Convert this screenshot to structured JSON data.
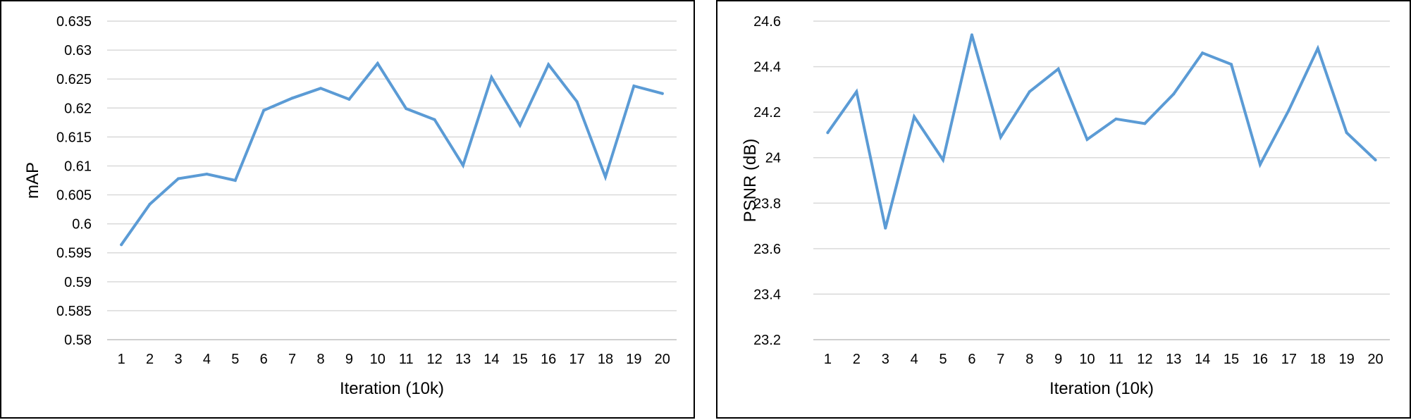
{
  "chart_data": [
    {
      "type": "line",
      "title": "",
      "xlabel": "Iteration (10k)",
      "ylabel": "mAP",
      "categories": [
        "1",
        "2",
        "3",
        "4",
        "5",
        "6",
        "7",
        "8",
        "9",
        "10",
        "11",
        "12",
        "13",
        "14",
        "15",
        "16",
        "17",
        "18",
        "19",
        "20"
      ],
      "yticks": [
        "0.58",
        "0.585",
        "0.59",
        "0.595",
        "0.6",
        "0.605",
        "0.61",
        "0.615",
        "0.62",
        "0.625",
        "0.63",
        "0.635"
      ],
      "ylim": [
        0.58,
        0.635
      ],
      "ystep": 0.005,
      "grid": true,
      "legend": "none",
      "series": [
        {
          "color": "#5B9BD5",
          "values": [
            0.5964,
            0.6034,
            0.6078,
            0.6086,
            0.6075,
            0.6196,
            0.6217,
            0.6234,
            0.6215,
            0.6277,
            0.6199,
            0.618,
            0.6101,
            0.6253,
            0.617,
            0.6275,
            0.6211,
            0.6081,
            0.6238,
            0.6225
          ]
        }
      ]
    },
    {
      "type": "line",
      "title": "",
      "xlabel": "Iteration (10k)",
      "ylabel": "PSNR (dB)",
      "categories": [
        "1",
        "2",
        "3",
        "4",
        "5",
        "6",
        "7",
        "8",
        "9",
        "10",
        "11",
        "12",
        "13",
        "14",
        "15",
        "16",
        "17",
        "18",
        "19",
        "20"
      ],
      "yticks": [
        "23.2",
        "23.4",
        "23.6",
        "23.8",
        "24",
        "24.2",
        "24.4",
        "24.6"
      ],
      "ylim": [
        23.2,
        24.6
      ],
      "ystep": 0.2,
      "grid": true,
      "legend": "none",
      "series": [
        {
          "color": "#5B9BD5",
          "values": [
            24.11,
            24.29,
            23.69,
            24.18,
            23.99,
            24.54,
            24.09,
            24.29,
            24.39,
            24.08,
            24.17,
            24.15,
            24.28,
            24.46,
            24.41,
            23.97,
            24.21,
            24.48,
            24.11,
            23.99
          ]
        }
      ]
    }
  ]
}
